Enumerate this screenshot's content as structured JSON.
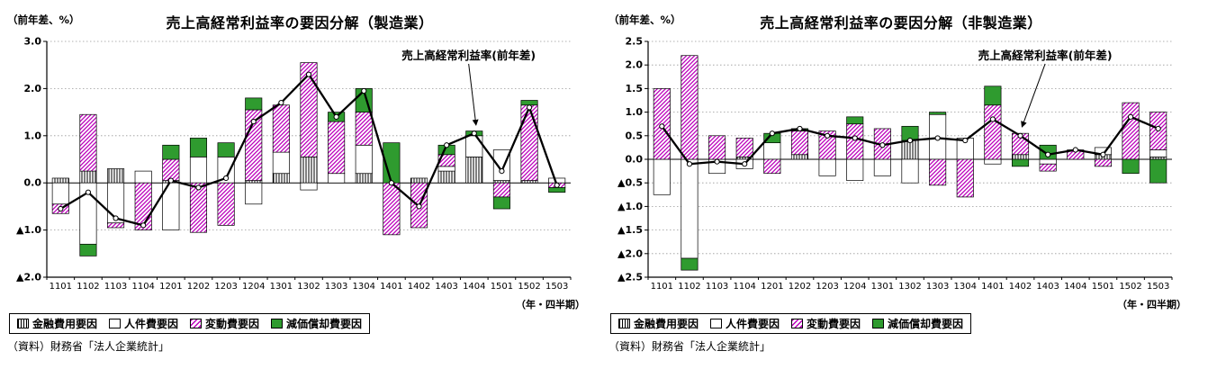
{
  "chart_data": [
    {
      "type": "bar",
      "stacked": true,
      "overlay": "line",
      "title": "売上高経常利益率の要因分解（製造業）",
      "unit_label": "（前年差、%）",
      "x_note": "（年・四半期）",
      "source": "（資料）財務省「法人企業統計」",
      "grid": "dotted-horizontal",
      "legend_position": "bottom",
      "ylim": [
        -2.0,
        3.0
      ],
      "yticks": [
        {
          "value": 3.0,
          "label": "3.0"
        },
        {
          "value": 2.0,
          "label": "2.0"
        },
        {
          "value": 1.0,
          "label": "1.0"
        },
        {
          "value": 0.0,
          "label": "0.0"
        },
        {
          "value": -1.0,
          "label": "▲1.0"
        },
        {
          "value": -2.0,
          "label": "▲2.0"
        }
      ],
      "categories": [
        "1101",
        "1102",
        "1103",
        "1104",
        "1201",
        "1202",
        "1203",
        "1204",
        "1301",
        "1302",
        "1303",
        "1304",
        "1401",
        "1402",
        "1403",
        "1404",
        "1501",
        "1502",
        "1503"
      ],
      "series": [
        {
          "name": "金融費用要因",
          "fill": "vertical-stripes",
          "values": [
            0.1,
            0.25,
            0.3,
            0.0,
            0.05,
            0.0,
            0.0,
            0.05,
            0.2,
            0.55,
            0.0,
            0.2,
            0.0,
            0.1,
            0.25,
            0.55,
            0.05,
            0.05,
            0.0
          ]
        },
        {
          "name": "人件費要因",
          "fill": "white",
          "values": [
            -0.45,
            -1.3,
            -0.85,
            0.25,
            -1.0,
            0.55,
            0.55,
            -0.45,
            0.45,
            -0.15,
            0.2,
            0.6,
            0.0,
            0.0,
            0.1,
            0.45,
            0.65,
            0.0,
            0.1
          ]
        },
        {
          "name": "変動費要因",
          "fill": "magenta-diagonal-stripes",
          "values": [
            -0.2,
            1.2,
            -0.1,
            -1.0,
            0.45,
            -1.05,
            -0.9,
            1.5,
            1.0,
            2.0,
            1.1,
            0.7,
            -1.1,
            -0.95,
            0.25,
            0.0,
            -0.3,
            1.6,
            -0.1
          ]
        },
        {
          "name": "減価償却費要因",
          "fill": "green-solid",
          "values": [
            0.0,
            -0.25,
            0.0,
            0.0,
            0.3,
            0.4,
            0.3,
            0.25,
            0.0,
            0.0,
            0.2,
            0.5,
            0.85,
            0.0,
            0.2,
            0.1,
            -0.25,
            0.1,
            -0.1
          ]
        }
      ],
      "line_series": {
        "name": "売上高経常利益率(前年差)",
        "values": [
          -0.55,
          -0.2,
          -0.75,
          -0.9,
          0.05,
          -0.1,
          0.1,
          1.3,
          1.7,
          2.3,
          1.4,
          1.95,
          0.0,
          -0.5,
          0.8,
          1.05,
          0.25,
          1.6,
          -0.05
        ]
      },
      "annotation": {
        "text": "売上高経常利益率(前年差)",
        "text_ci": 14.8,
        "text_v": 2.62,
        "target_ci": 15,
        "target_v": 1.12
      },
      "colors": {
        "stripe": "#000000",
        "magenta": "#bb00bb",
        "green": "#2f9b2f",
        "line": "#000000"
      }
    },
    {
      "type": "bar",
      "stacked": true,
      "overlay": "line",
      "title": "売上高経常利益率の要因分解（非製造業）",
      "unit_label": "（前年差、%）",
      "x_note": "（年・四半期）",
      "source": "（資料）財務省「法人企業統計」",
      "grid": "dotted-horizontal",
      "legend_position": "bottom",
      "ylim": [
        -2.5,
        2.5
      ],
      "yticks": [
        {
          "value": 2.5,
          "label": "2.5"
        },
        {
          "value": 2.0,
          "label": "2.0"
        },
        {
          "value": 1.5,
          "label": "1.5"
        },
        {
          "value": 1.0,
          "label": "1.0"
        },
        {
          "value": 0.5,
          "label": "0.5"
        },
        {
          "value": 0.0,
          "label": "0.0"
        },
        {
          "value": -0.5,
          "label": "▲0.5"
        },
        {
          "value": -1.0,
          "label": "▲1.0"
        },
        {
          "value": -1.5,
          "label": "▲1.5"
        },
        {
          "value": -2.0,
          "label": "▲2.0"
        },
        {
          "value": -2.5,
          "label": "▲2.5"
        }
      ],
      "categories": [
        "1101",
        "1102",
        "1103",
        "1104",
        "1201",
        "1202",
        "1203",
        "1204",
        "1301",
        "1302",
        "1303",
        "1304",
        "1401",
        "1402",
        "1403",
        "1404",
        "1501",
        "1502",
        "1503"
      ],
      "series": [
        {
          "name": "金融費用要因",
          "fill": "vertical-stripes",
          "values": [
            0.0,
            0.0,
            0.0,
            0.05,
            0.0,
            0.1,
            0.0,
            0.0,
            0.0,
            0.4,
            0.0,
            0.0,
            0.0,
            0.1,
            0.0,
            0.0,
            0.1,
            0.0,
            0.05
          ]
        },
        {
          "name": "人件費要因",
          "fill": "white",
          "values": [
            -0.75,
            -2.1,
            -0.3,
            -0.2,
            0.35,
            0.0,
            -0.35,
            -0.45,
            -0.35,
            -0.5,
            0.95,
            0.45,
            -0.1,
            0.0,
            -0.1,
            0.0,
            0.15,
            0.0,
            0.15
          ]
        },
        {
          "name": "変動費要因",
          "fill": "magenta-diagonal-stripes",
          "values": [
            1.5,
            2.2,
            0.5,
            0.4,
            -0.3,
            0.5,
            0.6,
            0.75,
            0.65,
            0.0,
            -0.55,
            -0.8,
            1.15,
            0.45,
            -0.15,
            0.2,
            -0.15,
            1.2,
            0.8
          ]
        },
        {
          "name": "減価償却費要因",
          "fill": "green-solid",
          "values": [
            0.0,
            -0.25,
            0.0,
            0.0,
            0.2,
            0.05,
            0.0,
            0.15,
            0.0,
            0.3,
            0.05,
            0.0,
            0.4,
            -0.15,
            0.3,
            0.0,
            0.0,
            -0.3,
            -0.5
          ]
        }
      ],
      "line_series": {
        "name": "売上高経常利益率(前年差)",
        "values": [
          0.7,
          -0.1,
          -0.05,
          -0.1,
          0.55,
          0.65,
          0.5,
          0.45,
          0.3,
          0.4,
          0.45,
          0.4,
          0.85,
          0.5,
          0.1,
          0.2,
          0.1,
          0.9,
          0.65
        ]
      },
      "annotation": {
        "text": "売上高経常利益率(前年差)",
        "text_ci": 13.9,
        "text_v": 2.12,
        "target_ci": 13,
        "target_v": 0.58
      },
      "colors": {
        "stripe": "#000000",
        "magenta": "#bb00bb",
        "green": "#2f9b2f",
        "line": "#000000"
      }
    }
  ]
}
